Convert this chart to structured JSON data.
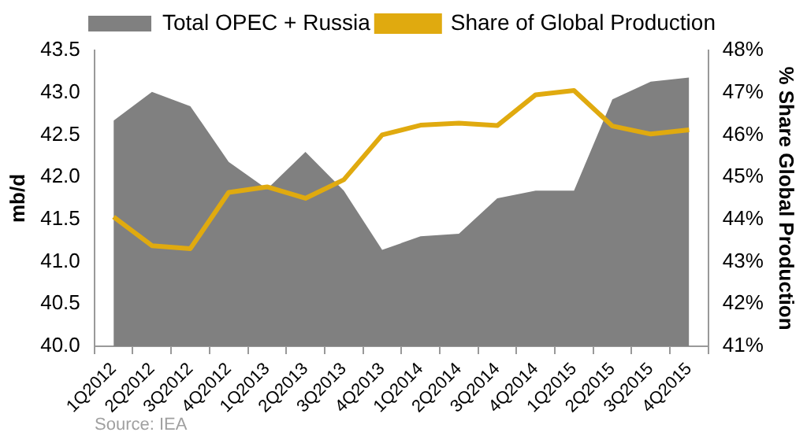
{
  "chart_data": {
    "type": "area",
    "ylabel": "mb/d",
    "y2label": "% Share Global Production",
    "categories": [
      "1Q2012",
      "2Q2012",
      "3Q2012",
      "4Q2012",
      "1Q2013",
      "2Q2013",
      "3Q2013",
      "4Q2013",
      "1Q2014",
      "2Q2014",
      "3Q2014",
      "4Q2014",
      "1Q2015",
      "2Q2015",
      "3Q2015",
      "4Q2015"
    ],
    "series": [
      {
        "name": "Total OPEC + Russia",
        "color": "#808080",
        "values": [
          42.67,
          43.01,
          42.84,
          42.18,
          41.86,
          42.3,
          41.84,
          41.14,
          41.3,
          41.33,
          41.75,
          41.84,
          41.84,
          42.92,
          43.13,
          43.18
        ]
      },
      {
        "name": "Share of Global Production",
        "type": "line",
        "axis": "y2",
        "color": "#e0aa0f",
        "values": [
          44.06,
          43.38,
          43.31,
          44.64,
          44.77,
          44.5,
          44.94,
          46.0,
          46.23,
          46.28,
          46.22,
          46.95,
          47.05,
          46.21,
          46.02,
          46.12
        ]
      }
    ],
    "ylim": [
      40,
      43.5
    ],
    "yticks": [
      {
        "value": 40,
        "label": "40.0"
      },
      {
        "value": 40.5,
        "label": "40.5"
      },
      {
        "value": 41,
        "label": "41.0"
      },
      {
        "value": 41.5,
        "label": "41.5"
      },
      {
        "value": 42,
        "label": "42.0"
      },
      {
        "value": 42.5,
        "label": "42.5"
      },
      {
        "value": 43,
        "label": "43.0"
      },
      {
        "value": 43.5,
        "label": "43.5"
      }
    ],
    "y2lim": [
      41,
      48
    ],
    "y2ticks": [
      {
        "value": 41,
        "label": "41%"
      },
      {
        "value": 42,
        "label": "42%"
      },
      {
        "value": 43,
        "label": "43%"
      },
      {
        "value": 44,
        "label": "44%"
      },
      {
        "value": 45,
        "label": "45%"
      },
      {
        "value": 46,
        "label": "46%"
      },
      {
        "value": 47,
        "label": "47%"
      },
      {
        "value": 48,
        "label": "48%"
      }
    ],
    "grid": false,
    "legend": "top",
    "marker": "none",
    "line_style": "solid",
    "annotations": [
      "Source: IEA"
    ]
  }
}
